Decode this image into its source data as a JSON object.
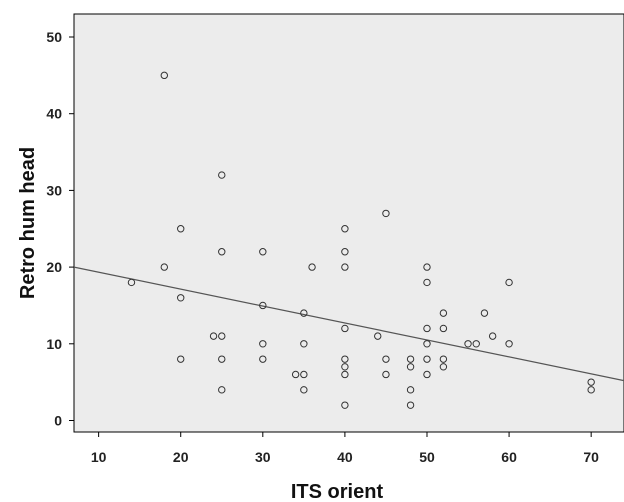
{
  "chart_data": {
    "type": "scatter",
    "xlabel": "ITS orient",
    "ylabel": "Retro hum head",
    "xlim": [
      7,
      74
    ],
    "ylim": [
      -1.5,
      53
    ],
    "xticks": [
      10,
      20,
      30,
      40,
      50,
      60,
      70
    ],
    "yticks": [
      0,
      10,
      20,
      30,
      40,
      50
    ],
    "grid": false,
    "plot_background": "#ececec",
    "marker_color": "#333333",
    "line_color": "#555555",
    "fit_line": [
      [
        7,
        20
      ],
      [
        74,
        5.2
      ]
    ],
    "points": [
      [
        14,
        18
      ],
      [
        18,
        45
      ],
      [
        18,
        20
      ],
      [
        20,
        25
      ],
      [
        20,
        16
      ],
      [
        20,
        8
      ],
      [
        24,
        11
      ],
      [
        25,
        32
      ],
      [
        25,
        22
      ],
      [
        25,
        11
      ],
      [
        25,
        8
      ],
      [
        25,
        4
      ],
      [
        30,
        22
      ],
      [
        30,
        15
      ],
      [
        30,
        10
      ],
      [
        30,
        8
      ],
      [
        34,
        6
      ],
      [
        35,
        14
      ],
      [
        35,
        10
      ],
      [
        35,
        6
      ],
      [
        35,
        4
      ],
      [
        36,
        20
      ],
      [
        40,
        25
      ],
      [
        40,
        22
      ],
      [
        40,
        20
      ],
      [
        40,
        12
      ],
      [
        40,
        8
      ],
      [
        40,
        7
      ],
      [
        40,
        6
      ],
      [
        40,
        2
      ],
      [
        44,
        11
      ],
      [
        45,
        27
      ],
      [
        45,
        8
      ],
      [
        45,
        6
      ],
      [
        48,
        8
      ],
      [
        48,
        7
      ],
      [
        48,
        4
      ],
      [
        48,
        2
      ],
      [
        50,
        20
      ],
      [
        50,
        18
      ],
      [
        50,
        12
      ],
      [
        50,
        10
      ],
      [
        50,
        8
      ],
      [
        50,
        6
      ],
      [
        52,
        14
      ],
      [
        52,
        12
      ],
      [
        52,
        8
      ],
      [
        52,
        7
      ],
      [
        55,
        10
      ],
      [
        56,
        10
      ],
      [
        57,
        14
      ],
      [
        58,
        11
      ],
      [
        60,
        18
      ],
      [
        60,
        10
      ],
      [
        70,
        5
      ],
      [
        70,
        4
      ]
    ]
  }
}
